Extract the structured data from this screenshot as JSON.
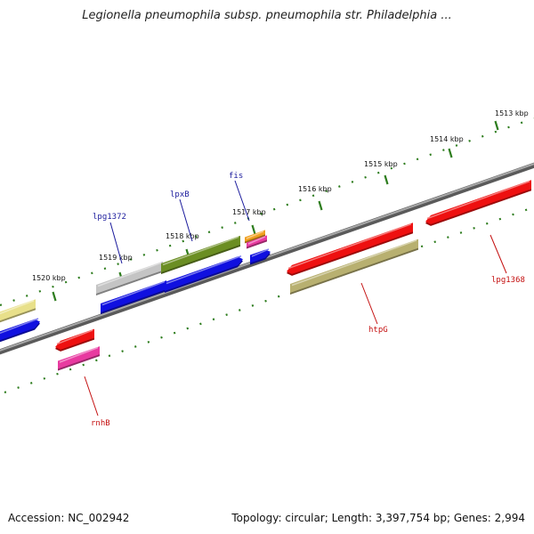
{
  "title": "Legionella pneumophila subsp. pneumophila str. Philadelphia ...",
  "footer": {
    "accession": "Accession: NC_002942",
    "summary": "Topology: circular; Length: 3,397,754 bp; Genes: 2,994"
  },
  "colors": {
    "backbone": "#7a7a7a",
    "tick": "#2e7d1e",
    "label_blue": "#1a1a9c",
    "label_red": "#c41010"
  },
  "scale_labels": [
    "1513 kbp",
    "1514 kbp",
    "1515 kbp",
    "1516 kbp",
    "1517 kbp",
    "1518 kbp",
    "1519 kbp",
    "1520 kbp"
  ],
  "gene_labels": [
    {
      "name": "fis",
      "strand": "forward",
      "color": "#1a1a9c"
    },
    {
      "name": "lpxB",
      "strand": "forward",
      "color": "#1a1a9c"
    },
    {
      "name": "lpg1372",
      "strand": "forward",
      "color": "#1a1a9c"
    },
    {
      "name": "htpG",
      "strand": "reverse",
      "color": "#c41010"
    },
    {
      "name": "lpg1368",
      "strand": "reverse",
      "color": "#c41010"
    },
    {
      "name": "rnhB",
      "strand": "reverse",
      "color": "#c41010"
    }
  ],
  "features": [
    {
      "name": "forward-outer-yellow",
      "color": "#e8e08a"
    },
    {
      "name": "forward-inner-blue",
      "color": "#1010e0"
    },
    {
      "name": "lpg1372-gray",
      "color": "#c4c4c4"
    },
    {
      "name": "lpg1372-blue",
      "color": "#1010e0"
    },
    {
      "name": "lpxB-olive",
      "color": "#6b8e23"
    },
    {
      "name": "lpxB-blue",
      "color": "#1010e0"
    },
    {
      "name": "fis-orange",
      "color": "#f0a020"
    },
    {
      "name": "fis-pink",
      "color": "#e83aa0"
    },
    {
      "name": "fis-blue",
      "color": "#1010e0"
    },
    {
      "name": "htpG-red",
      "color": "#ee1010"
    },
    {
      "name": "htpG-khaki",
      "color": "#b8b070"
    },
    {
      "name": "lpg1368-red",
      "color": "#ee1010"
    },
    {
      "name": "rnhB-red",
      "color": "#ee1010"
    },
    {
      "name": "rnhB-pink",
      "color": "#e83aa0"
    }
  ]
}
